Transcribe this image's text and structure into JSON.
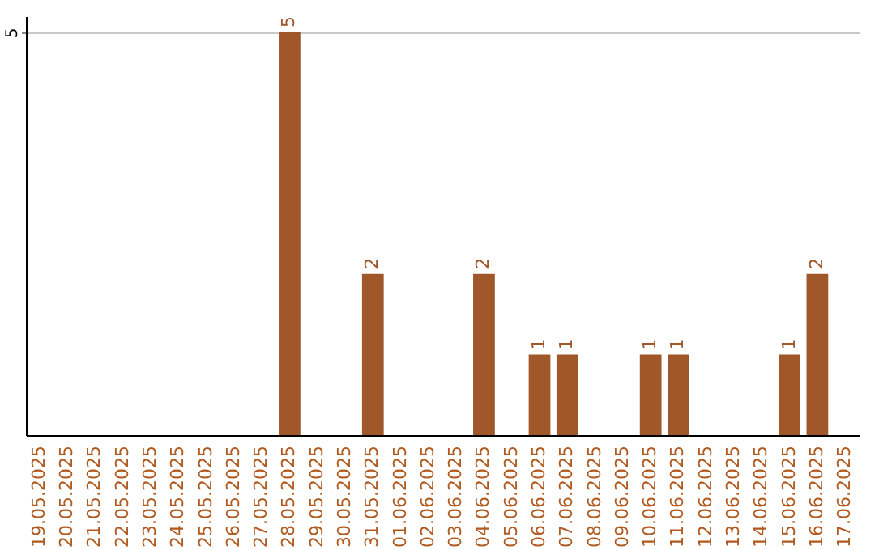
{
  "chart_data": {
    "type": "bar",
    "categories": [
      "19.05.2025",
      "20.05.2025",
      "21.05.2025",
      "22.05.2025",
      "23.05.2025",
      "24.05.2025",
      "25.05.2025",
      "26.05.2025",
      "27.05.2025",
      "28.05.2025",
      "29.05.2025",
      "30.05.2025",
      "31.05.2025",
      "01.06.2025",
      "02.06.2025",
      "03.06.2025",
      "04.06.2025",
      "05.06.2025",
      "06.06.2025",
      "07.06.2025",
      "08.06.2025",
      "09.06.2025",
      "10.06.2025",
      "11.06.2025",
      "12.06.2025",
      "13.06.2025",
      "14.06.2025",
      "15.06.2025",
      "16.06.2025",
      "17.06.2025"
    ],
    "values": [
      null,
      null,
      null,
      null,
      null,
      null,
      null,
      null,
      null,
      5,
      null,
      null,
      2,
      null,
      null,
      null,
      2,
      null,
      1,
      1,
      null,
      null,
      1,
      1,
      null,
      null,
      null,
      1,
      2,
      null
    ],
    "color": "#a0572a",
    "ylim": [
      0,
      5.2
    ],
    "yticks": [
      5
    ],
    "grid": "y",
    "data_labels": true
  }
}
